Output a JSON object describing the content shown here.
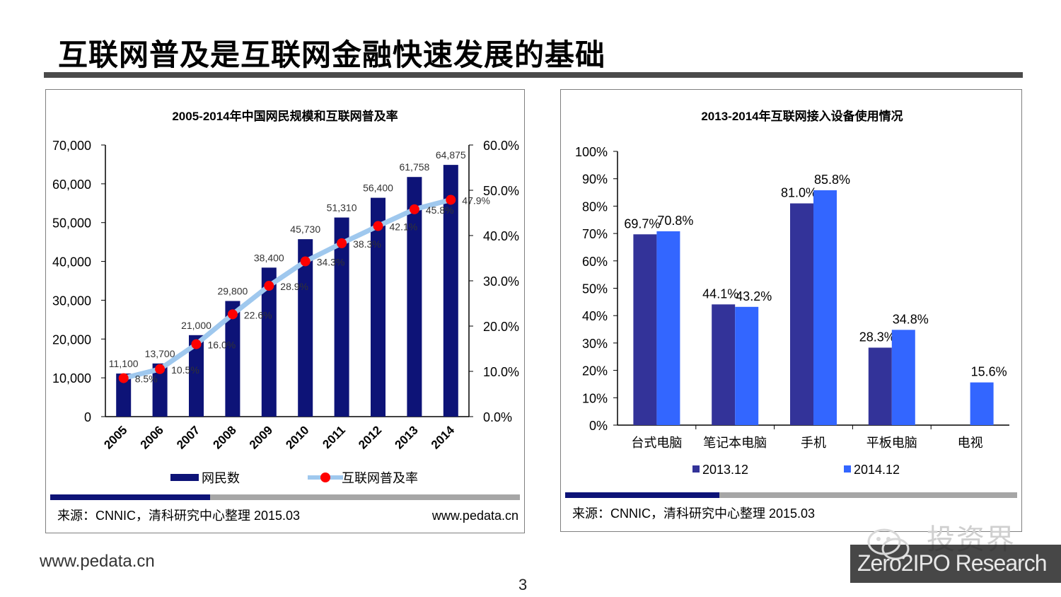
{
  "slide": {
    "title": "互联网普及是互联网金融快速发展的基础",
    "footer_url": "www.pedata.cn",
    "page_number": "3"
  },
  "watermark": {
    "brand": "投资界",
    "research": "Zero2IPO Research"
  },
  "colors": {
    "navy": "#0D1377",
    "light_blue_line": "#9FC8EE",
    "red_marker": "#FF0000",
    "bar_2013": "#333399",
    "bar_2014": "#3366FF",
    "band_dark": "#0D1377",
    "band_gray": "#A6A6A6",
    "title_rule": "#4A4A4A"
  },
  "chart_data": [
    {
      "type": "bar",
      "title": "2005-2014年中国网民规模和互联网普及率",
      "categories": [
        "2005",
        "2006",
        "2007",
        "2008",
        "2009",
        "2010",
        "2011",
        "2012",
        "2013",
        "2014"
      ],
      "series": [
        {
          "name": "网民数",
          "type": "bar",
          "axis": "left",
          "values": [
            11100,
            13700,
            21000,
            29800,
            38400,
            45730,
            51310,
            56400,
            61758,
            64875
          ],
          "labels": [
            "11,100",
            "13,700",
            "21,000",
            "29,800",
            "38,400",
            "45,730",
            "51,310",
            "56,400",
            "61,758",
            "64,875"
          ]
        },
        {
          "name": "互联网普及率",
          "type": "line",
          "axis": "right",
          "values": [
            8.5,
            10.5,
            16.0,
            22.6,
            28.9,
            34.3,
            38.3,
            42.1,
            45.8,
            47.9
          ],
          "labels": [
            "8.5%",
            "10.5%",
            "16.0%",
            "22.6%",
            "28.9%",
            "34.3%",
            "38.3%",
            "42.1%",
            "45.8%",
            "47.9%"
          ]
        }
      ],
      "ylim": [
        0,
        70000
      ],
      "yticks": [
        "0",
        "10,000",
        "20,000",
        "30,000",
        "40,000",
        "50,000",
        "60,000",
        "70,000"
      ],
      "y2lim": [
        0,
        60
      ],
      "y2ticks": [
        "0.0%",
        "10.0%",
        "20.0%",
        "30.0%",
        "40.0%",
        "50.0%",
        "60.0%"
      ],
      "legend": "bottom",
      "source": "来源：CNNIC，清科研究中心整理 2015.03",
      "url": "www.pedata.cn"
    },
    {
      "type": "bar",
      "title": "2013-2014年互联网接入设备使用情况",
      "categories": [
        "台式电脑",
        "笔记本电脑",
        "手机",
        "平板电脑",
        "电视"
      ],
      "series": [
        {
          "name": "2013.12",
          "values": [
            69.7,
            44.1,
            81.0,
            28.3,
            null
          ],
          "labels": [
            "69.7%",
            "44.1%",
            "81.0%",
            "28.3%",
            ""
          ]
        },
        {
          "name": "2014.12",
          "values": [
            70.8,
            43.2,
            85.8,
            34.8,
            15.6
          ],
          "labels": [
            "70.8%",
            "43.2%",
            "85.8%",
            "34.8%",
            "15.6%"
          ]
        }
      ],
      "ylim": [
        0,
        100
      ],
      "yticks": [
        "0%",
        "10%",
        "20%",
        "30%",
        "40%",
        "50%",
        "60%",
        "70%",
        "80%",
        "90%",
        "100%"
      ],
      "legend": "bottom",
      "source": "来源：CNNIC，清科研究中心整理 2015.03"
    }
  ]
}
